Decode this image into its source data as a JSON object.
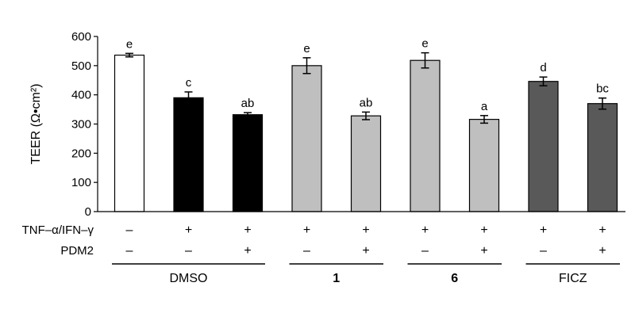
{
  "chart_data": {
    "type": "bar",
    "title": "",
    "xlabel": "",
    "ylabel": "TEER (Ω•cm²)",
    "ylim": [
      0,
      600
    ],
    "yticks": [
      "0",
      "100",
      "200",
      "300",
      "400",
      "500",
      "600"
    ],
    "bars": [
      {
        "value": 536,
        "error": 6,
        "letter": "e",
        "tnf": "–",
        "pdm2": "–",
        "color": "#ffffff"
      },
      {
        "value": 390,
        "error": 20,
        "letter": "c",
        "tnf": "+",
        "pdm2": "–",
        "color": "#000000"
      },
      {
        "value": 332,
        "error": 7,
        "letter": "ab",
        "tnf": "+",
        "pdm2": "+",
        "color": "#000000"
      },
      {
        "value": 500,
        "error": 27,
        "letter": "e",
        "tnf": "+",
        "pdm2": "–",
        "color": "#bfbfbf"
      },
      {
        "value": 328,
        "error": 13,
        "letter": "ab",
        "tnf": "+",
        "pdm2": "+",
        "color": "#bfbfbf"
      },
      {
        "value": 518,
        "error": 26,
        "letter": "e",
        "tnf": "+",
        "pdm2": "–",
        "color": "#bfbfbf"
      },
      {
        "value": 316,
        "error": 13,
        "letter": "a",
        "tnf": "+",
        "pdm2": "+",
        "color": "#bfbfbf"
      },
      {
        "value": 446,
        "error": 15,
        "letter": "d",
        "tnf": "+",
        "pdm2": "–",
        "color": "#595959"
      },
      {
        "value": 370,
        "error": 19,
        "letter": "bc",
        "tnf": "+",
        "pdm2": "+",
        "color": "#595959"
      }
    ],
    "row_labels": {
      "tnf": "TNF–α/IFN–γ",
      "pdm2": "PDM2"
    },
    "groups": [
      {
        "label": "DMSO",
        "bold": false
      },
      {
        "label": "1",
        "bold": true
      },
      {
        "label": "6",
        "bold": true
      },
      {
        "label": "FICZ",
        "bold": false
      }
    ]
  }
}
